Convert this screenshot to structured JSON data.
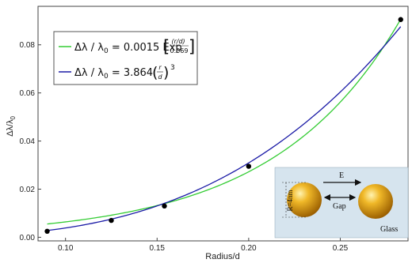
{
  "chart_data": {
    "type": "scatter",
    "xlabel": "Radius/d",
    "ylabel": "Δλ/λ0",
    "xlim": [
      0.085,
      0.287
    ],
    "ylim": [
      -0.0015,
      0.096
    ],
    "x_ticks": [
      "0.10",
      "0.15",
      "0.20",
      "0.25"
    ],
    "y_ticks": [
      "0.00",
      "0.02",
      "0.04",
      "0.06",
      "0.08"
    ],
    "points": [
      {
        "x": 0.09,
        "y": 0.0025
      },
      {
        "x": 0.125,
        "y": 0.007
      },
      {
        "x": 0.154,
        "y": 0.013
      },
      {
        "x": 0.2,
        "y": 0.0295
      },
      {
        "x": 0.283,
        "y": 0.0905
      }
    ],
    "fits": [
      {
        "label": "Δλ / λ0 = 0.0015 Exp[(r/d)/0.069]",
        "color": "#33cc33",
        "form": "exp",
        "a": 0.0015,
        "b": 0.069
      },
      {
        "label": "Δλ / λ0 = 3.864 (r/d)^3",
        "color": "#1a1aa6",
        "form": "cubic",
        "a": 3.864
      }
    ],
    "legend_placement": "top-left"
  },
  "legend": {
    "green_lhs": "Δλ / λ",
    "green_rhs": "= 0.0015 Exp",
    "green_frac_num": "(r/d)",
    "green_frac_den": "0.069",
    "blue_lhs": "Δλ / λ",
    "blue_rhs": "= 3.864",
    "blue_frac_num": "r",
    "blue_frac_den": "d",
    "blue_exp": "3",
    "subscript": "0"
  },
  "inset": {
    "field_label": "E",
    "gap_label": "Gap",
    "radius_label": "R=4nm",
    "medium_label": "Glass",
    "colors": {
      "background": "#d6e4ee",
      "sphere": "#e0a010",
      "sphere_dark": "#a86a00"
    }
  }
}
